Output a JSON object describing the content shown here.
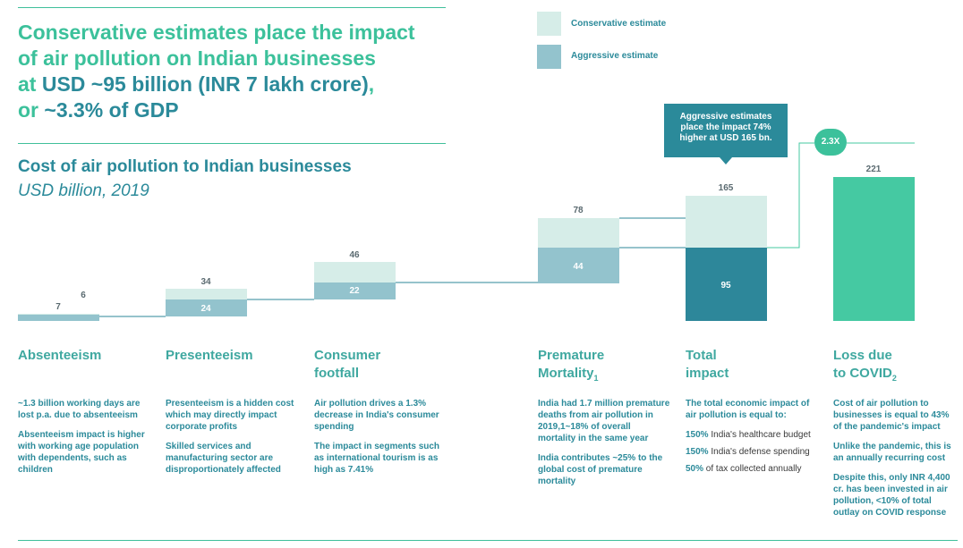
{
  "headline": {
    "line1": "Conservative estimates place the impact",
    "line2": "of air pollution on Indian businesses",
    "line3_prefix": "at ",
    "line3_highlight": "USD ~95 billion (INR 7 lakh crore)",
    "line3_suffix": ",",
    "line4_prefix": "or ",
    "line4_highlight": "~3.3% of GDP"
  },
  "chart_title": "Cost of air pollution to Indian businesses",
  "chart_unit": "USD billion, 2019",
  "legend": {
    "conservative": "Conservative estimate",
    "aggressive": "Aggressive estimate"
  },
  "callout": {
    "line1": "Aggressive estimates",
    "line2": "place the impact 74%",
    "line3": "higher at USD 165 bn."
  },
  "multiplier": "2.3X",
  "colors": {
    "conservative": "#93c3cd",
    "aggressive": "#d6ede8",
    "total_conservative": "#2d879a",
    "covid": "#45c9a2",
    "accent_text": "#2b8a9a",
    "headline": "#3cc19b"
  },
  "chart_data": {
    "type": "bar",
    "categories": [
      "Absenteeism",
      "Presenteeism",
      "Consumer footfall",
      "Premature Mortality",
      "Total impact",
      "Loss due to COVID"
    ],
    "series": [
      {
        "name": "Conservative estimate",
        "values": [
          6,
          24,
          22,
          44,
          95,
          null
        ]
      },
      {
        "name": "Aggressive estimate",
        "values": [
          7,
          34,
          46,
          78,
          165,
          null
        ]
      }
    ],
    "covid_value": 221,
    "labels": {
      "conservative": [
        "6",
        "24",
        "22",
        "44",
        "95",
        ""
      ],
      "aggressive": [
        "7",
        "34",
        "46",
        "78",
        "165",
        "221"
      ]
    },
    "ylim": [
      0,
      240
    ]
  },
  "columns": [
    {
      "title": "Absenteeism",
      "paras": [
        "~1.3 billion working days are lost p.a. due to absenteeism",
        "Absenteeism impact is higher with working age population with dependents, such as children"
      ]
    },
    {
      "title": "Presenteeism",
      "paras": [
        "Presenteeism is a hidden cost which may directly impact corporate profits",
        "Skilled services and manufacturing sector are disproportionately affected"
      ]
    },
    {
      "title_line1": "Consumer",
      "title_line2": "footfall",
      "paras": [
        "Air pollution drives a 1.3% decrease in India's consumer spending",
        "The impact in segments such as international tourism is as high as 7.41%"
      ]
    },
    {
      "title_line1": "Premature",
      "title_line2": "Mortality",
      "title_sub": "1",
      "paras": [
        "India had 1.7 million premature deaths from air pollution in 2019,1~18% of overall mortality in the same year",
        "India contributes ~25% to the global cost of premature mortality"
      ]
    },
    {
      "title_line1": "Total",
      "title_line2": "impact",
      "intro": "The total economic impact of air pollution is equal to:",
      "items": [
        {
          "num": "150%",
          "text": "India's healthcare budget"
        },
        {
          "num": "150%",
          "text": "India's defense spending"
        },
        {
          "num": "50%",
          "text": "of tax collected annually"
        }
      ]
    },
    {
      "title_line1": "Loss due",
      "title_line2": "to COVID",
      "title_sub": "2",
      "paras": [
        "Cost of air pollution to businesses is equal to 43% of the pandemic's impact",
        "Unlike the pandemic, this is an annually recurring cost",
        "Despite this, only INR 4,400 cr. has been invested in air pollution, <10% of total outlay on COVID response"
      ]
    }
  ]
}
